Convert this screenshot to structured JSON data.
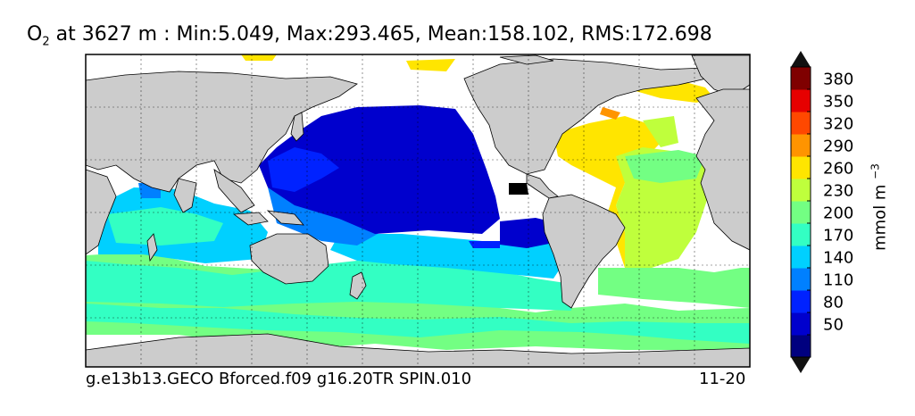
{
  "title": {
    "var": "O",
    "sub": "2",
    "rest": " at 3627 m : Min:5.049, Max:293.465, Mean:158.102, RMS:172.698"
  },
  "footer": {
    "left": "g.e13b13.GECO Bforced.f09 g16.20TR SPIN.010",
    "right": "11-20"
  },
  "colorbar": {
    "label_text": "mmol m",
    "label_sup": "−3",
    "ticks": [
      "50",
      "80",
      "110",
      "140",
      "170",
      "200",
      "230",
      "260",
      "290",
      "320",
      "350",
      "380"
    ],
    "colors": [
      "#00007f",
      "#0000cd",
      "#0022ff",
      "#0080ff",
      "#00d0ff",
      "#33ffc3",
      "#73ff83",
      "#bfff3c",
      "#ffe500",
      "#ff9400",
      "#ff4800",
      "#e60000",
      "#7f0000"
    ]
  },
  "map": {
    "land_color": "#cccccc",
    "missing_color": "#ffffff",
    "grid": "dotted"
  }
}
